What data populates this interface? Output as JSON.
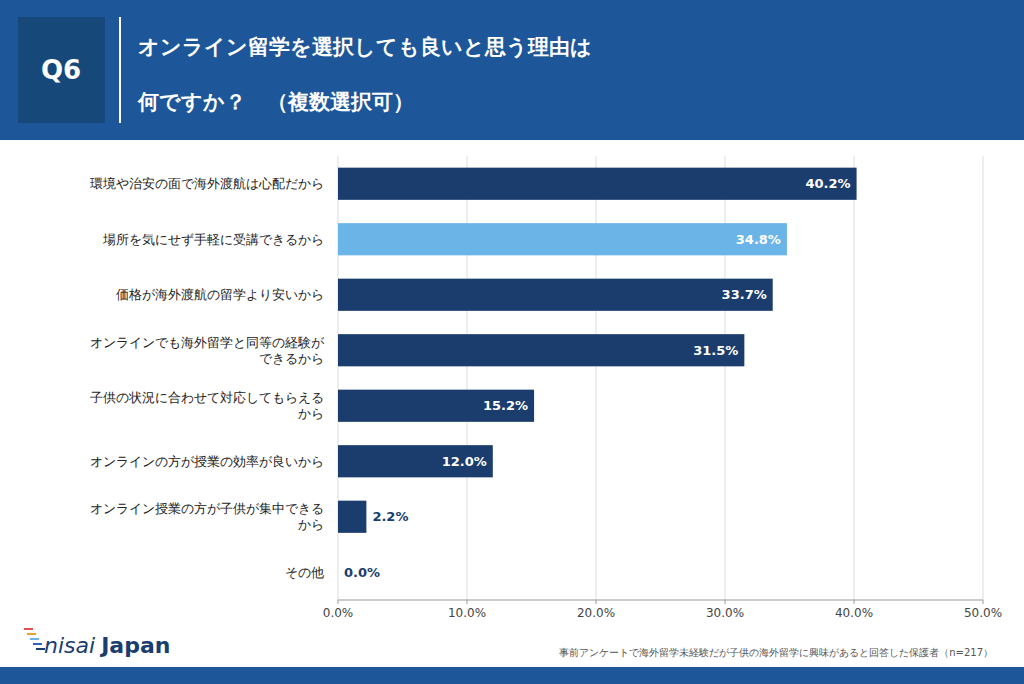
{
  "chart_data": {
    "type": "bar",
    "orientation": "horizontal",
    "title": "オンライン留学を選択しても良いと思う理由は",
    "subtitle": "何ですか？　（複数選択可）",
    "annotations": [
      "Q6",
      "nisai",
      "Japan",
      "事前アンケートで海外留学未経験だが子供の海外留学に興味があると回答した保護者（n=217）"
    ],
    "categories": [
      "環境や治安の面で海外渡航は心配だから",
      "場所を気にせず手軽に受講できるから",
      "価格が海外渡航の留学より安いから",
      "オンラインでも海外留学と同等の経験が\nできるから",
      "子供の状況に合わせて対応してもらえる\nから",
      "オンラインの方が授業の効率が良いから",
      "オンライン授業の方が子供が集中できる\nから",
      "その他"
    ],
    "values": [
      40.2,
      34.8,
      33.7,
      31.5,
      15.2,
      12.0,
      2.2,
      0.0
    ],
    "value_labels": [
      "40.2%",
      "34.8%",
      "33.7%",
      "31.5%",
      "15.2%",
      "12.0%",
      "2.2%",
      "0.0%"
    ],
    "colors": [
      "#1a3d6e",
      "#6ab4e8",
      "#1a3d6e",
      "#1a3d6e",
      "#1a3d6e",
      "#1a3d6e",
      "#1a3d6e",
      "#1a3d6e"
    ],
    "data_labels": true,
    "xlim": [
      0,
      50
    ],
    "xticks": [
      {
        "value": 0,
        "label": "0.0%"
      },
      {
        "value": 10,
        "label": "10.0%"
      },
      {
        "value": 20,
        "label": "20.0%"
      },
      {
        "value": 30,
        "label": "30.0%"
      },
      {
        "value": 40,
        "label": "40.0%"
      },
      {
        "value": 50,
        "label": "50.0%"
      }
    ],
    "grid": true
  }
}
